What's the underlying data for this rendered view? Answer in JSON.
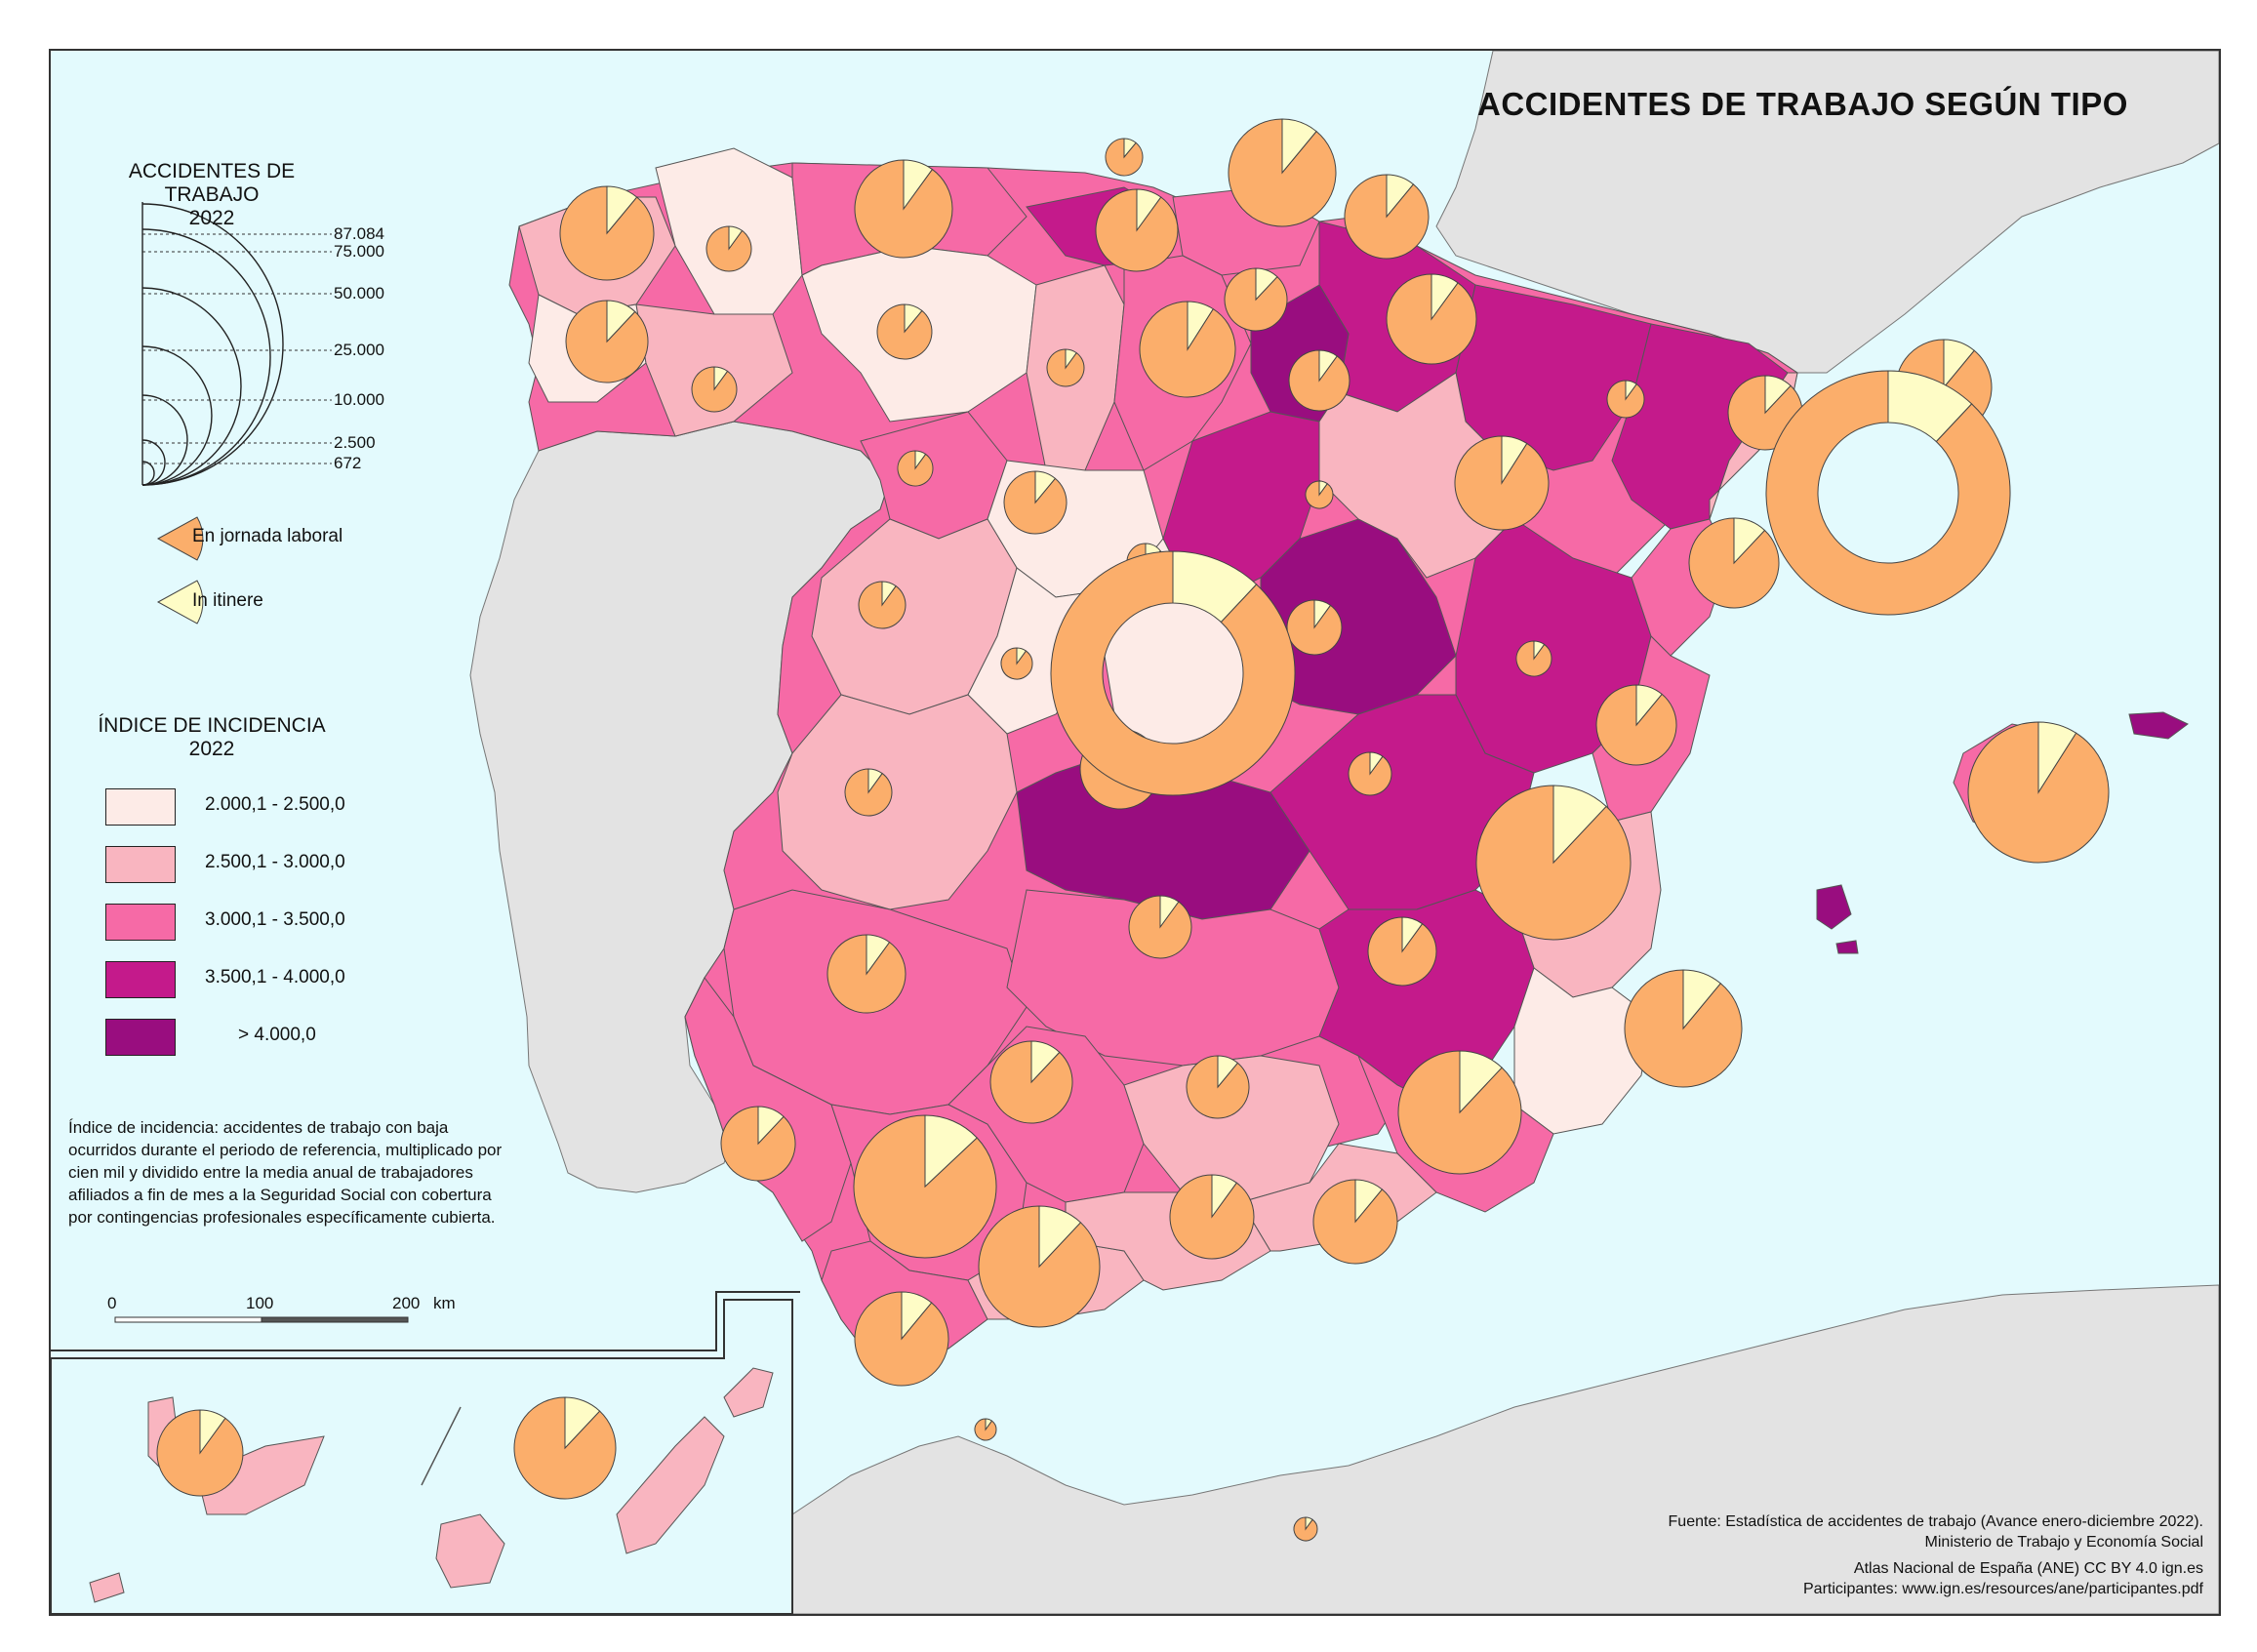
{
  "title": "ACCIDENTES DE TRABAJO SEGÚN TIPO",
  "size_legend": {
    "title_line1": "ACCIDENTES DE TRABAJO",
    "title_line2": "2022",
    "values": [
      "87.084",
      "75.000",
      "50.000",
      "25.000",
      "10.000",
      "2.500",
      "672"
    ]
  },
  "pie_legend": {
    "laboral": "En jornada laboral",
    "itinere": "In itinere",
    "laboral_color": "#fbae6b",
    "itinere_color": "#fefcc6"
  },
  "incidence_legend": {
    "title_line1": "ÍNDICE DE INCIDENCIA",
    "title_line2": "2022",
    "classes": [
      {
        "label": "2.000,1 - 2.500,0",
        "color": "#fdebe7"
      },
      {
        "label": "2.500,1 - 3.000,0",
        "color": "#f9b5c0"
      },
      {
        "label": "3.000,1 - 3.500,0",
        "color": "#f66aa6"
      },
      {
        "label": "3.500,1 - 4.000,0",
        "color": "#c41a8b"
      },
      {
        "label": "> 4.000,0",
        "color": "#990d7f"
      }
    ]
  },
  "note": "Índice de incidencia: accidentes de trabajo con baja ocurridos durante el periodo de referencia, multiplicado por cien mil y dividido entre la media anual de trabajadores afiliados a fin de mes a la Seguridad Social con cobertura por contingencias profesionales específicamente cubierta.",
  "scale_bar": {
    "labels": [
      "0",
      "100",
      "200"
    ],
    "unit": "km"
  },
  "source": {
    "line1": "Fuente: Estadística de accidentes de trabajo (Avance enero-diciembre 2022).",
    "line2": "Ministerio de Trabajo y Economía Social",
    "line3": "Atlas Nacional de España (ANE) CC BY 4.0 ign.es",
    "line4": "Participantes: www.ign.es/resources/ane/participantes.pdf"
  },
  "colors": {
    "sea": "#e3fafd",
    "foreign_land": "#e3e3e3"
  }
}
